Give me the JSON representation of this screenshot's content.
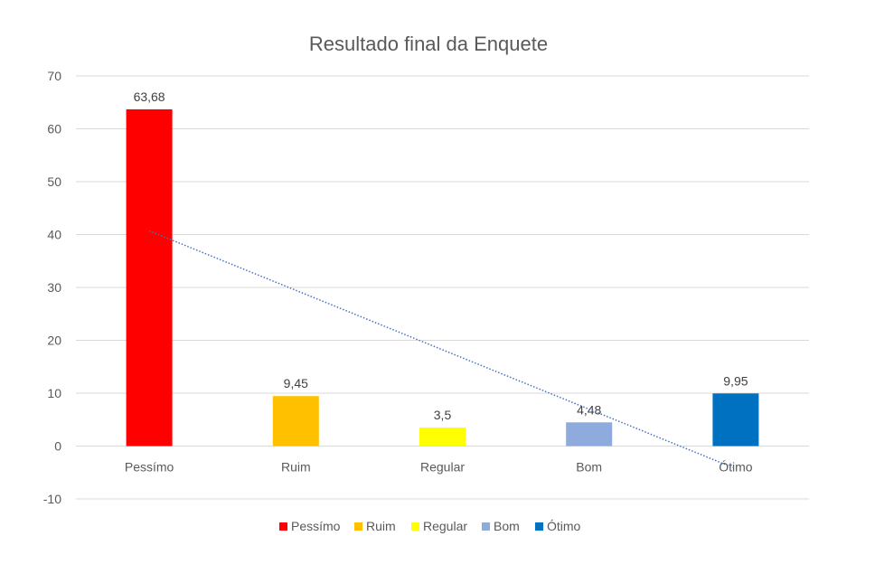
{
  "chart_data": {
    "type": "bar",
    "title": "Resultado final da Enquete",
    "xlabel": "",
    "ylabel": "",
    "categories": [
      "Pessímo",
      "Ruim",
      "Regular",
      "Bom",
      "Ótimo"
    ],
    "values": [
      63.68,
      9.45,
      3.5,
      4.48,
      9.95
    ],
    "data_labels": [
      "63,68",
      "9,45",
      "3,5",
      "4,48",
      "9,95"
    ],
    "colors": [
      "#FF0000",
      "#FFC000",
      "#FFFF00",
      "#8FAADC",
      "#0070C0"
    ],
    "ylim": [
      -10,
      70
    ],
    "yticks": [
      -10,
      0,
      10,
      20,
      30,
      40,
      50,
      60,
      70
    ],
    "grid": true,
    "legend": {
      "position": "bottom",
      "entries": [
        "Pessímo",
        "Ruim",
        "Regular",
        "Bom",
        "Ótimo"
      ]
    },
    "trendline": {
      "type": "linear",
      "color": "#4472C4",
      "style": "dotted"
    }
  }
}
